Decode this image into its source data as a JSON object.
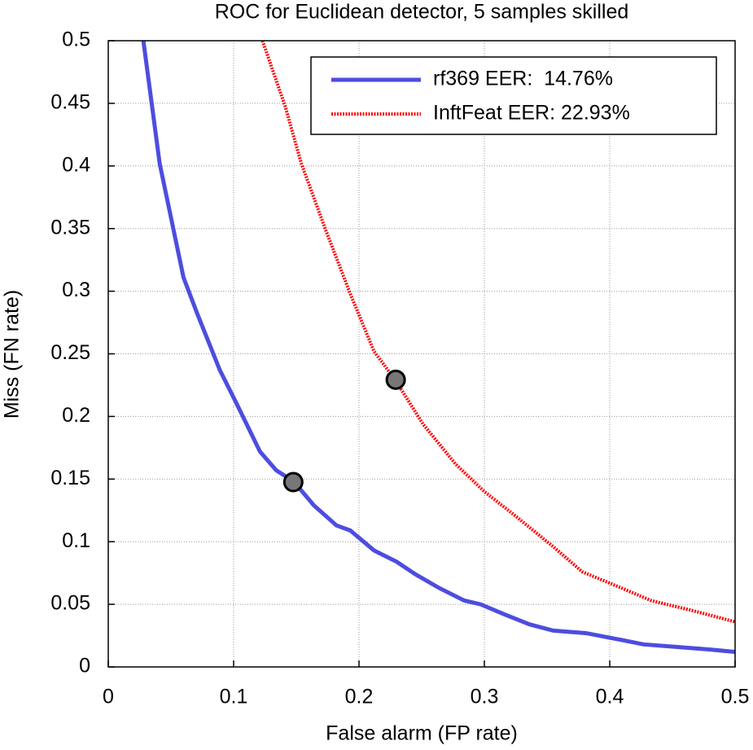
{
  "chart_data": {
    "type": "line",
    "title": "ROC for Euclidean detector, 5 samples skilled",
    "x_label": "False alarm (FP rate)",
    "y_label": "Miss (FN rate)",
    "xlim": [
      0,
      0.5
    ],
    "ylim": [
      0,
      0.5
    ],
    "xticks": [
      0,
      0.1,
      0.2,
      0.3,
      0.4,
      0.5
    ],
    "yticks": [
      0,
      0.05,
      0.1,
      0.15,
      0.2,
      0.25,
      0.3,
      0.35,
      0.4,
      0.45,
      0.5
    ],
    "grid": true,
    "legend": "upper right",
    "series": [
      {
        "name": "rf369 EER:  14.76%",
        "color": "#4d4de0",
        "style": "solid",
        "x": [
          0.028,
          0.041,
          0.06,
          0.071,
          0.089,
          0.102,
          0.121,
          0.134,
          0.148,
          0.164,
          0.182,
          0.193,
          0.212,
          0.23,
          0.245,
          0.264,
          0.284,
          0.297,
          0.316,
          0.336,
          0.355,
          0.381,
          0.407,
          0.427,
          0.453,
          0.479,
          0.5
        ],
        "values": [
          0.5,
          0.402,
          0.311,
          0.282,
          0.237,
          0.211,
          0.172,
          0.157,
          0.148,
          0.129,
          0.113,
          0.109,
          0.093,
          0.084,
          0.074,
          0.063,
          0.053,
          0.05,
          0.042,
          0.034,
          0.029,
          0.027,
          0.022,
          0.018,
          0.016,
          0.014,
          0.012
        ],
        "eer_point": {
          "x": 0.1476,
          "y": 0.1476
        }
      },
      {
        "name": "InftFeat EER: 22.93%",
        "color": "#ff0000",
        "style": "dotted",
        "x": [
          0.123,
          0.141,
          0.154,
          0.173,
          0.193,
          0.212,
          0.229,
          0.251,
          0.277,
          0.3,
          0.323,
          0.355,
          0.378,
          0.407,
          0.433,
          0.466,
          0.5
        ],
        "values": [
          0.5,
          0.448,
          0.402,
          0.35,
          0.298,
          0.252,
          0.229,
          0.194,
          0.162,
          0.14,
          0.122,
          0.096,
          0.076,
          0.064,
          0.053,
          0.045,
          0.036
        ],
        "eer_point": {
          "x": 0.2293,
          "y": 0.2293
        }
      }
    ]
  }
}
